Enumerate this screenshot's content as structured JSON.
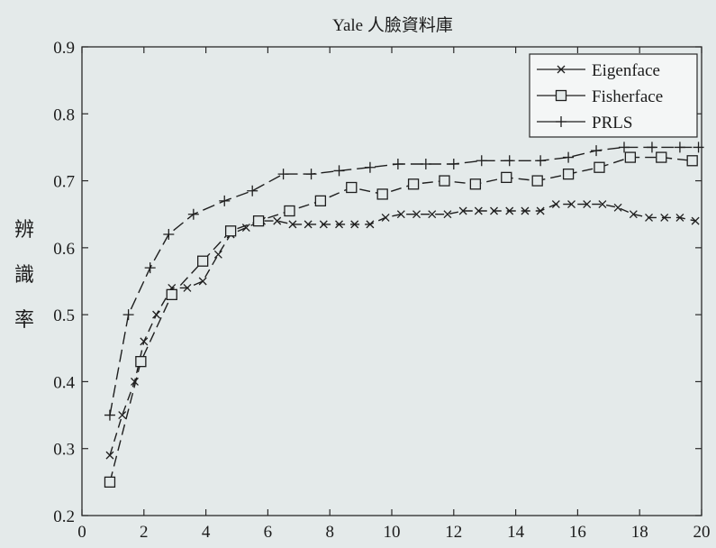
{
  "chart_data": {
    "type": "line",
    "title": "Yale 人臉資料庫",
    "xlabel": "",
    "ylabel": "辨識率",
    "xlim": [
      0,
      20
    ],
    "ylim": [
      0.2,
      0.9
    ],
    "xticks": [
      0,
      2,
      4,
      6,
      8,
      10,
      12,
      14,
      16,
      18,
      20
    ],
    "yticks": [
      0.2,
      0.3,
      0.4,
      0.5,
      0.6,
      0.7,
      0.8,
      0.9
    ],
    "grid": false,
    "legend": "top-right",
    "series": [
      {
        "name": "Eigenface",
        "marker": "x",
        "dash": "10,6",
        "x": [
          0.9,
          1.3,
          1.7,
          2.0,
          2.4,
          2.9,
          3.4,
          3.9,
          4.4,
          4.8,
          5.3,
          5.8,
          6.3,
          6.8,
          7.3,
          7.8,
          8.3,
          8.8,
          9.3,
          9.8,
          10.3,
          10.8,
          11.3,
          11.8,
          12.3,
          12.8,
          13.3,
          13.8,
          14.3,
          14.8,
          15.3,
          15.8,
          16.3,
          16.8,
          17.3,
          17.8,
          18.3,
          18.8,
          19.3,
          19.8
        ],
        "y": [
          0.29,
          0.35,
          0.4,
          0.46,
          0.5,
          0.54,
          0.54,
          0.55,
          0.59,
          0.62,
          0.63,
          0.64,
          0.64,
          0.635,
          0.635,
          0.635,
          0.635,
          0.635,
          0.635,
          0.645,
          0.65,
          0.65,
          0.65,
          0.65,
          0.655,
          0.655,
          0.655,
          0.655,
          0.655,
          0.655,
          0.665,
          0.665,
          0.665,
          0.665,
          0.66,
          0.65,
          0.645,
          0.645,
          0.645,
          0.64
        ]
      },
      {
        "name": "Fisherface",
        "marker": "square",
        "dash": "12,6",
        "x": [
          0.9,
          1.9,
          2.9,
          3.9,
          4.8,
          5.7,
          6.7,
          7.7,
          8.7,
          9.7,
          10.7,
          11.7,
          12.7,
          13.7,
          14.7,
          15.7,
          16.7,
          17.7,
          18.7,
          19.7
        ],
        "y": [
          0.25,
          0.43,
          0.53,
          0.58,
          0.625,
          0.64,
          0.655,
          0.67,
          0.69,
          0.68,
          0.695,
          0.7,
          0.695,
          0.705,
          0.7,
          0.71,
          0.72,
          0.735,
          0.735,
          0.73
        ]
      },
      {
        "name": "PRLS",
        "marker": "plus",
        "dash": "14,6",
        "x": [
          0.9,
          1.5,
          2.2,
          2.8,
          3.6,
          4.6,
          5.5,
          6.5,
          7.4,
          8.3,
          9.3,
          10.2,
          11.1,
          12.0,
          12.9,
          13.8,
          14.8,
          15.7,
          16.6,
          17.5,
          18.4,
          19.3,
          19.9
        ],
        "y": [
          0.35,
          0.5,
          0.57,
          0.62,
          0.65,
          0.67,
          0.685,
          0.71,
          0.71,
          0.715,
          0.72,
          0.725,
          0.725,
          0.725,
          0.73,
          0.73,
          0.73,
          0.735,
          0.745,
          0.75,
          0.75,
          0.75,
          0.75
        ]
      }
    ]
  },
  "colors": {
    "line": "#1e1e1e",
    "axis": "#2a2a2a",
    "background": "#e4eaea",
    "legend_bg": "#f4f6f6"
  }
}
